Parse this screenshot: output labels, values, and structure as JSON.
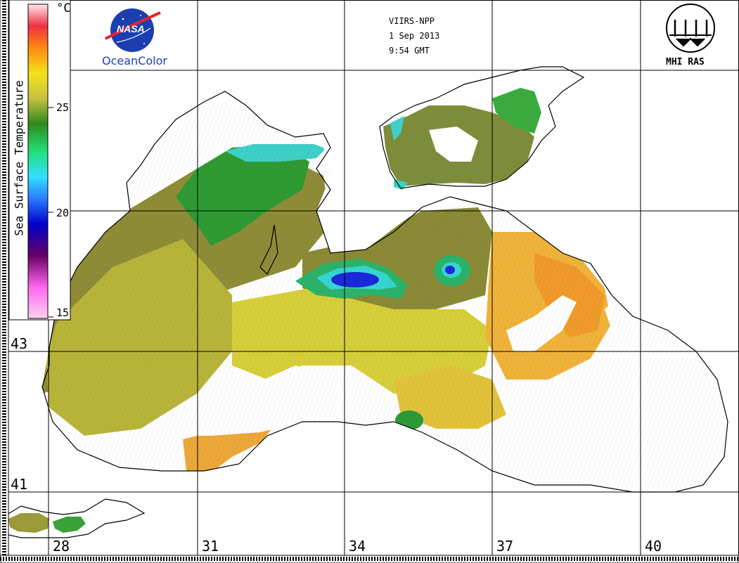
{
  "sensor": "VIIRS-NPP",
  "date": "1 Sep 2013",
  "time": "9:54 GMT",
  "logos": {
    "nasa_text": "NASA",
    "oceancolor_text": "OceanColor",
    "mhi_text": "MHI RAS"
  },
  "colorbar": {
    "title": "Sea Surface Temperature",
    "unit": "°C",
    "ticks": [
      "25",
      "20",
      "15"
    ],
    "min": 15,
    "max": 30
  },
  "longitude_labels": [
    "28",
    "31",
    "34",
    "37",
    "40"
  ],
  "latitude_labels": [
    "43",
    "41"
  ],
  "colors": {
    "cold_blue": "#1a2ad8",
    "cyan": "#33d6e6",
    "green": "#2fa53a",
    "olive": "#8a8a3a",
    "yellow": "#d8d23a",
    "orange": "#f0a030"
  }
}
